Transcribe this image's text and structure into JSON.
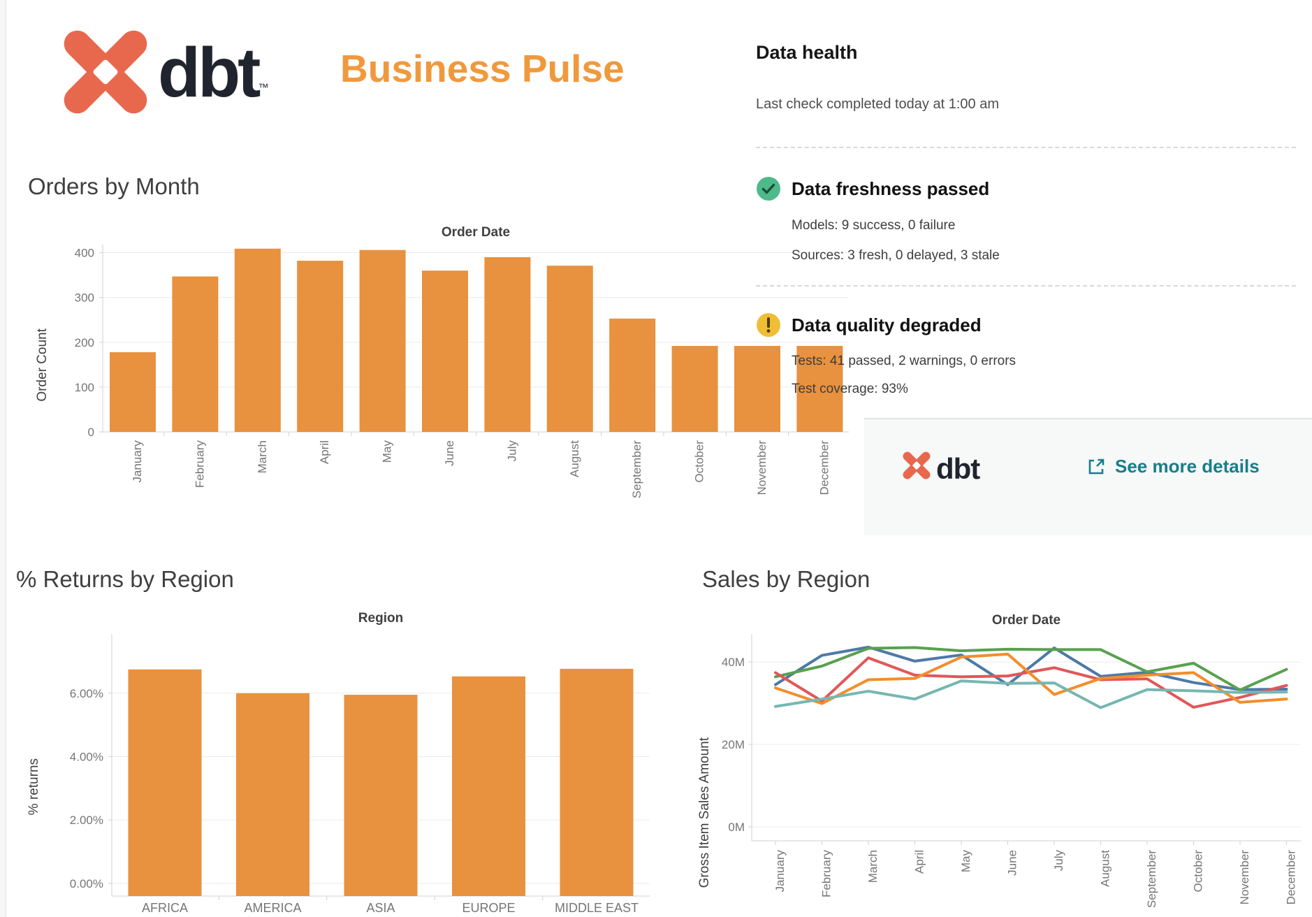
{
  "header": {
    "wordmark": "dbt",
    "trademark": "™",
    "title": "Business Pulse",
    "logo_color": "#E8684D",
    "wordmark_color": "#20242E",
    "title_color": "#F0993C"
  },
  "data_health": {
    "title": "Data health",
    "last_check": "Last check completed today at 1:00 am",
    "freshness": {
      "label": "Data freshness passed",
      "models": "Models: 9 success, 0 failure",
      "sources": "Sources: 3 fresh, 0 delayed, 3 stale",
      "icon_color": "#4DBA89",
      "check_color": "#1E4B3A"
    },
    "quality": {
      "label": "Data quality degraded",
      "tests": "Tests: 41 passed, 2 warnings, 0 errors",
      "coverage": "Test coverage: 93%",
      "icon_color": "#F0BE36",
      "mark_color": "#4E3D12"
    },
    "footer": {
      "wordmark": "dbt",
      "link_label": "See more details",
      "link_color": "#177E8A",
      "bg": "#F7F8F8"
    }
  },
  "chart_data": [
    {
      "id": "orders-by-month",
      "type": "bar",
      "title": "Orders by Month",
      "column_header": "Order Date",
      "ylabel": "Order Count",
      "categories": [
        "January",
        "February",
        "March",
        "April",
        "May",
        "June",
        "July",
        "August",
        "September",
        "October",
        "November",
        "December"
      ],
      "values": [
        178,
        347,
        409,
        382,
        406,
        360,
        390,
        371,
        253,
        192,
        192,
        192
      ],
      "yticks": [
        0,
        100,
        200,
        300,
        400
      ],
      "ytick_labels": [
        "0",
        "100",
        "200",
        "300",
        "400"
      ],
      "ylim": [
        0,
        418
      ],
      "bar_color": "#E8913E",
      "grid": true,
      "legend": "none",
      "x_labels_rotated": true
    },
    {
      "id": "returns-by-region",
      "type": "bar",
      "title": "% Returns by Region",
      "column_header": "Region",
      "ylabel": "% returns",
      "categories": [
        "AFRICA",
        "AMERICA",
        "ASIA",
        "EUROPE",
        "MIDDLE EAST"
      ],
      "values": [
        6.75,
        6.0,
        5.95,
        6.53,
        6.77
      ],
      "yticks": [
        0,
        2,
        4,
        6
      ],
      "ytick_labels": [
        "0.00%",
        "2.00%",
        "4.00%",
        "6.00%"
      ],
      "ylim": [
        -0.4,
        7.87
      ],
      "bar_color": "#E8913E",
      "grid": true,
      "legend": "none",
      "x_labels_rotated": false
    },
    {
      "id": "sales-by-region",
      "type": "line",
      "title": "Sales by Region",
      "column_header": "Order Date",
      "ylabel": "Gross Item Sales Amount",
      "units": "millions",
      "categories": [
        "January",
        "February",
        "March",
        "April",
        "May",
        "June",
        "July",
        "August",
        "September",
        "October",
        "November",
        "December"
      ],
      "series": [
        {
          "name": "blue",
          "color": "#4E79A7",
          "values": [
            34.5,
            41.6,
            43.6,
            40.2,
            41.7,
            34.5,
            43.4,
            36.5,
            37.5,
            35.0,
            33.3,
            33.4
          ]
        },
        {
          "name": "green",
          "color": "#59A14F",
          "values": [
            36.4,
            39.0,
            43.3,
            43.5,
            42.7,
            43.1,
            43.0,
            43.0,
            37.6,
            39.7,
            33.2,
            38.2
          ]
        },
        {
          "name": "red",
          "color": "#E15759",
          "values": [
            37.4,
            30.5,
            41.0,
            36.8,
            36.4,
            36.6,
            38.6,
            35.7,
            35.9,
            29.0,
            31.4,
            34.3
          ]
        },
        {
          "name": "orange",
          "color": "#F28E2B",
          "values": [
            33.7,
            29.9,
            35.7,
            36.0,
            41.2,
            41.9,
            32.1,
            36.0,
            36.8,
            37.4,
            30.2,
            31.0
          ]
        },
        {
          "name": "teal",
          "color": "#76B7B2",
          "values": [
            29.2,
            31.0,
            32.9,
            31.0,
            35.4,
            34.8,
            34.9,
            28.9,
            33.3,
            33.0,
            32.6,
            32.7
          ]
        }
      ],
      "yticks": [
        0,
        20,
        40
      ],
      "ytick_labels": [
        "0M",
        "20M",
        "40M"
      ],
      "ylim": [
        -3.4,
        46.8
      ],
      "grid": true,
      "legend": "none",
      "x_labels_rotated": true
    }
  ]
}
